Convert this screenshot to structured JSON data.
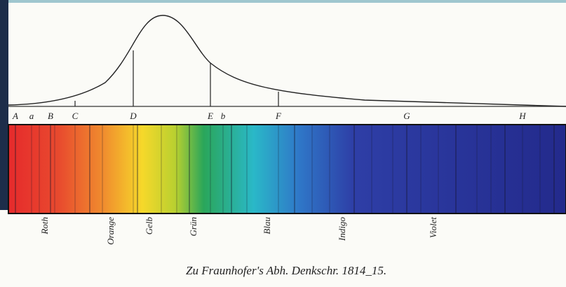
{
  "line_labels": [
    "A",
    "a",
    "B",
    "C",
    "D",
    "E",
    "b",
    "F",
    "G",
    "H"
  ],
  "color_labels": [
    "Roth",
    "Orange",
    "Gelb",
    "Grün",
    "Blau",
    "Indigo",
    "Violet"
  ],
  "caption": "Zu Fraunhofer's Abh. Denkschr. 1814_15."
}
